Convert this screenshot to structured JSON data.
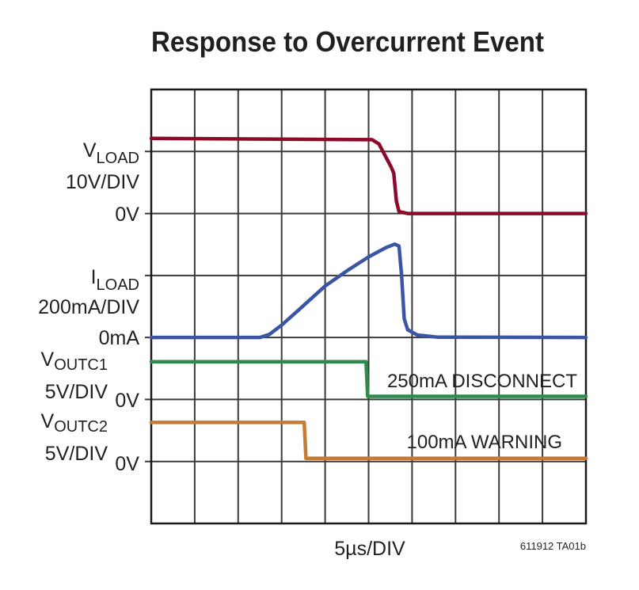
{
  "chart_data": {
    "type": "line",
    "title": "Response to Overcurrent Event",
    "xlabel": "5µs/DIV",
    "x_unit": "µs",
    "xlim": [
      0,
      50
    ],
    "x_divisions": 10,
    "y_divisions": 7,
    "grid": true,
    "figure_id": "611912 TA01b",
    "annotations": [
      "250mA DISCONNECT",
      "100mA WARNING"
    ],
    "series": [
      {
        "name": "VLOAD",
        "main": "V",
        "sub": "LOAD",
        "scale_label": "10V/DIV",
        "zero_label": "0V",
        "unit": "V",
        "per_div": 10,
        "color": "#8c0a2c",
        "points": [
          [
            0,
            12.1
          ],
          [
            25.4,
            11.9
          ],
          [
            26.2,
            11.2
          ],
          [
            27.6,
            7.5
          ],
          [
            27.9,
            6.5
          ],
          [
            28.2,
            2
          ],
          [
            28.5,
            0.3
          ],
          [
            29.5,
            0
          ],
          [
            50,
            0
          ]
        ]
      },
      {
        "name": "ILOAD",
        "main": "I",
        "sub": "LOAD",
        "scale_label": "200mA/DIV",
        "zero_label": "0mA",
        "unit": "mA",
        "per_div": 200,
        "color": "#3b55a5",
        "points": [
          [
            0,
            0
          ],
          [
            12.5,
            0
          ],
          [
            13.6,
            10
          ],
          [
            15,
            40
          ],
          [
            17,
            90
          ],
          [
            20,
            166
          ],
          [
            22.5,
            215
          ],
          [
            25,
            260
          ],
          [
            27,
            290
          ],
          [
            28,
            301
          ],
          [
            28.5,
            295
          ],
          [
            28.8,
            200
          ],
          [
            29.1,
            60
          ],
          [
            29.5,
            25
          ],
          [
            30.6,
            8
          ],
          [
            33,
            1
          ],
          [
            50,
            0
          ]
        ]
      },
      {
        "name": "VOUTC1",
        "main": "V",
        "sub": "OUTC1",
        "scale_label": "5V/DIV",
        "zero_label": "0V",
        "unit": "V",
        "per_div": 5,
        "color": "#2f8a4c",
        "points": [
          [
            0,
            2.8
          ],
          [
            24.7,
            2.8
          ],
          [
            24.9,
            0
          ],
          [
            50,
            0
          ]
        ]
      },
      {
        "name": "VOUTC2",
        "main": "V",
        "sub": "OUTC2",
        "scale_label": "5V/DIV",
        "zero_label": "0V",
        "unit": "V",
        "per_div": 5,
        "color": "#c67b34",
        "points": [
          [
            0,
            2.9
          ],
          [
            17.6,
            2.9
          ],
          [
            17.8,
            0
          ],
          [
            50,
            0
          ]
        ]
      }
    ]
  }
}
